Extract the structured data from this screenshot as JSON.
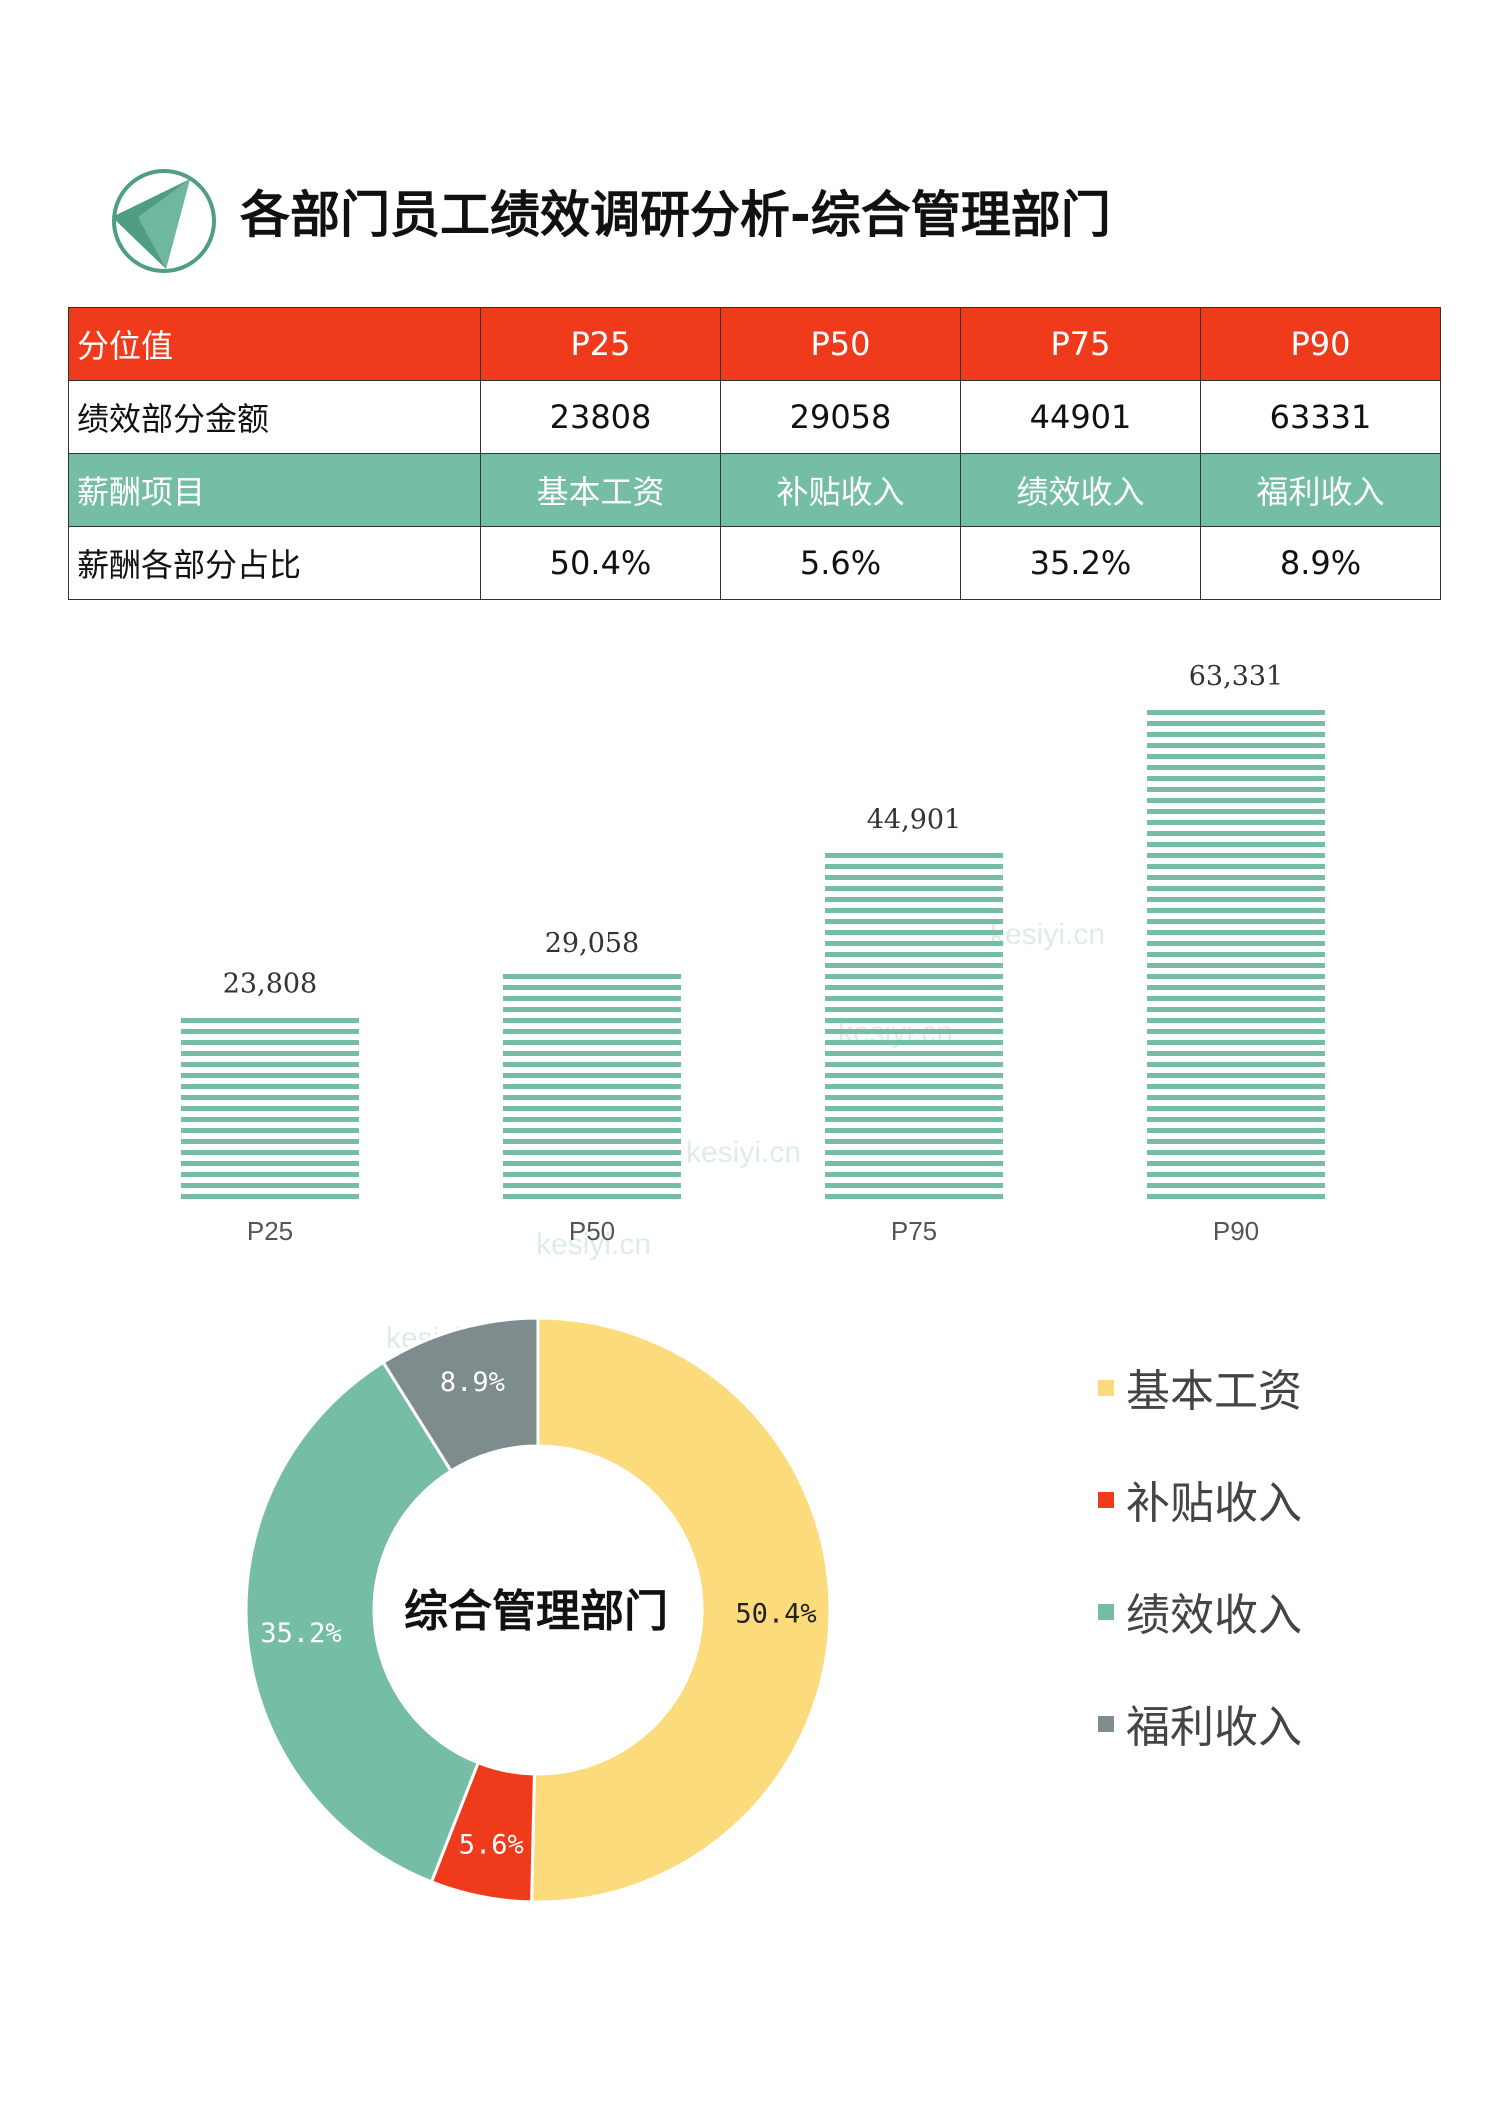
{
  "title": "各部门员工绩效调研分析-综合管理部门",
  "logo_icon": "triangle-in-circle-icon",
  "table": {
    "rows": [
      {
        "style": "red",
        "label": "分位值",
        "cells": [
          "P25",
          "P50",
          "P75",
          "P90"
        ]
      },
      {
        "style": "white",
        "label": "绩效部分金额",
        "cells": [
          "23808",
          "29058",
          "44901",
          "63331"
        ]
      },
      {
        "style": "green",
        "label": "薪酬项目",
        "cells": [
          "基本工资",
          "补贴收入",
          "绩效收入",
          "福利收入"
        ]
      },
      {
        "style": "white",
        "label": "薪酬各部分占比",
        "cells": [
          "50.4%",
          "5.6%",
          "35.2%",
          "8.9%"
        ]
      }
    ]
  },
  "watermark": "kesiyi.cn",
  "colors": {
    "red": "#ef3b1c",
    "green": "#76bda6",
    "yellow": "#fcdb7c",
    "gray": "#7f8c8d"
  },
  "chart_data": [
    {
      "type": "bar",
      "categories": [
        "P25",
        "P50",
        "P75",
        "P90"
      ],
      "values": [
        23808,
        29058,
        44901,
        63331
      ],
      "data_labels": [
        "23,808",
        "29,058",
        "44,901",
        "63,331"
      ],
      "ylim": [
        0,
        70000
      ],
      "grid": false,
      "bar_color": "#76bda6",
      "bar_pattern": "horizontal-stripes"
    },
    {
      "type": "pie",
      "donut": true,
      "center_label": "综合管理部门",
      "labels": [
        "基本工资",
        "补贴收入",
        "绩效收入",
        "福利收入"
      ],
      "values": [
        50.4,
        5.6,
        35.2,
        8.9
      ],
      "data_labels": [
        "50.4%",
        "5.6%",
        "35.2%",
        "8.9%"
      ],
      "colors": [
        "#fcdb7c",
        "#ef3b1c",
        "#76bda6",
        "#7f8c8d"
      ],
      "legend_position": "right"
    }
  ]
}
